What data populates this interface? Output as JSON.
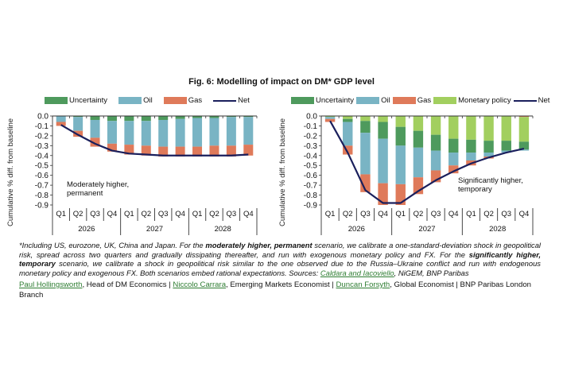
{
  "figure": {
    "title": "Fig. 6: Modelling of impact on DM* GDP level"
  },
  "colors": {
    "Uncertainty": "#4e9a5d",
    "Oil": "#79b4c4",
    "Gas": "#df7a5a",
    "Monetary policy": "#a2cf5f",
    "Net": "#1a1f5c"
  },
  "chart_data": [
    {
      "type": "bar",
      "stacked": true,
      "title": "",
      "annotation": [
        "Moderately higher,",
        "permanent"
      ],
      "annotation_position": "lower-left",
      "legend": [
        "Uncertainty",
        "Oil",
        "Gas",
        "Net"
      ],
      "legend_position": "top",
      "ylabel": "Cumulative % diff. from baseline",
      "xlabel": "",
      "ylim": [
        -0.9,
        0.0
      ],
      "yticks": [
        "0.0",
        "-0.1",
        "-0.2",
        "-0.3",
        "-0.4",
        "-0.5",
        "-0.6",
        "-0.7",
        "-0.8",
        "-0.9"
      ],
      "categories": [
        "Q1",
        "Q2",
        "Q3",
        "Q4",
        "Q1",
        "Q2",
        "Q3",
        "Q4",
        "Q1",
        "Q2",
        "Q3",
        "Q4"
      ],
      "groups": [
        "2026",
        "2027",
        "2028"
      ],
      "series": [
        {
          "name": "Uncertainty",
          "kind": "bar",
          "values": [
            0.0,
            -0.01,
            -0.04,
            -0.05,
            -0.05,
            -0.05,
            -0.04,
            -0.03,
            -0.02,
            -0.02,
            -0.01,
            -0.01
          ]
        },
        {
          "name": "Oil",
          "kind": "bar",
          "values": [
            -0.06,
            -0.14,
            -0.18,
            -0.23,
            -0.24,
            -0.25,
            -0.27,
            -0.28,
            -0.29,
            -0.28,
            -0.29,
            -0.28
          ]
        },
        {
          "name": "Gas",
          "kind": "bar",
          "values": [
            -0.04,
            -0.06,
            -0.09,
            -0.08,
            -0.1,
            -0.1,
            -0.1,
            -0.1,
            -0.1,
            -0.11,
            -0.11,
            -0.11
          ]
        },
        {
          "name": "Net",
          "kind": "line",
          "values": [
            -0.09,
            -0.19,
            -0.28,
            -0.35,
            -0.38,
            -0.39,
            -0.4,
            -0.4,
            -0.4,
            -0.4,
            -0.4,
            -0.39
          ]
        }
      ]
    },
    {
      "type": "bar",
      "stacked": true,
      "title": "",
      "annotation": [
        "Significantly higher,",
        "temporary"
      ],
      "annotation_position": "lower-right",
      "legend": [
        "Uncertainty",
        "Oil",
        "Gas",
        "Monetary policy",
        "Net"
      ],
      "legend_position": "top",
      "ylabel": "Cumulative % diff. from baseline",
      "xlabel": "",
      "ylim": [
        -0.9,
        0.0
      ],
      "yticks": [
        "0.0",
        "-0.1",
        "-0.2",
        "-0.3",
        "-0.4",
        "-0.5",
        "-0.6",
        "-0.7",
        "-0.8",
        "-0.9"
      ],
      "categories": [
        "Q1",
        "Q2",
        "Q3",
        "Q4",
        "Q1",
        "Q2",
        "Q3",
        "Q4",
        "Q1",
        "Q2",
        "Q3",
        "Q4"
      ],
      "groups": [
        "2026",
        "2027",
        "2028"
      ],
      "series": [
        {
          "name": "Monetary policy",
          "kind": "bar",
          "top_first": [
            0
          ],
          "values": [
            -0.01,
            -0.03,
            -0.05,
            -0.06,
            -0.11,
            -0.15,
            -0.19,
            -0.23,
            -0.24,
            -0.25,
            -0.25,
            -0.25
          ]
        },
        {
          "name": "Uncertainty",
          "kind": "bar",
          "values": [
            0.0,
            -0.03,
            -0.12,
            -0.17,
            -0.19,
            -0.17,
            -0.16,
            -0.14,
            -0.13,
            -0.12,
            -0.1,
            -0.08
          ]
        },
        {
          "name": "Oil",
          "kind": "bar",
          "values": [
            -0.02,
            -0.24,
            -0.42,
            -0.45,
            -0.39,
            -0.3,
            -0.2,
            -0.13,
            -0.08,
            -0.04,
            -0.02,
            -0.01
          ]
        },
        {
          "name": "Gas",
          "kind": "bar",
          "top_first": [
            11
          ],
          "values": [
            -0.03,
            -0.09,
            -0.18,
            -0.22,
            -0.21,
            -0.17,
            -0.12,
            -0.08,
            -0.05,
            -0.02,
            0.0,
            -0.01
          ]
        },
        {
          "name": "Net",
          "kind": "line",
          "values": [
            -0.05,
            -0.37,
            -0.75,
            -0.88,
            -0.88,
            -0.76,
            -0.65,
            -0.56,
            -0.48,
            -0.42,
            -0.37,
            -0.33
          ]
        }
      ]
    }
  ],
  "notes": {
    "p1": "*Including US, eurozone, UK, China and Japan. For the ",
    "b1": "moderately higher, permanent",
    "p2": " scenario, we calibrate a one-standard-deviation shock in geopolitical risk, spread across two quarters and gradually dissipating thereafter, and run with exogenous monetary policy and FX. For the ",
    "b2": "significantly higher, temporary",
    "p3": " scenario, we calibrate a shock in geopolitical risk similar to the one observed due to the Russia–Ukraine conflict and run with endogenous monetary policy and exogenous FX. Both scenarios embed rational expectations. Sources: ",
    "source_link": "Caldara and Iacoviello",
    "p4": ", NiGEM, BNP Paribas"
  },
  "authors": [
    {
      "name": "Paul Hollingsworth",
      "role": ", Head of DM Economics | "
    },
    {
      "name": "Niccolo Carrara",
      "role": ", Emerging Markets Economist | "
    },
    {
      "name": "Duncan Forsyth",
      "role": ", Global Economist | BNP Paribas London Branch"
    }
  ]
}
